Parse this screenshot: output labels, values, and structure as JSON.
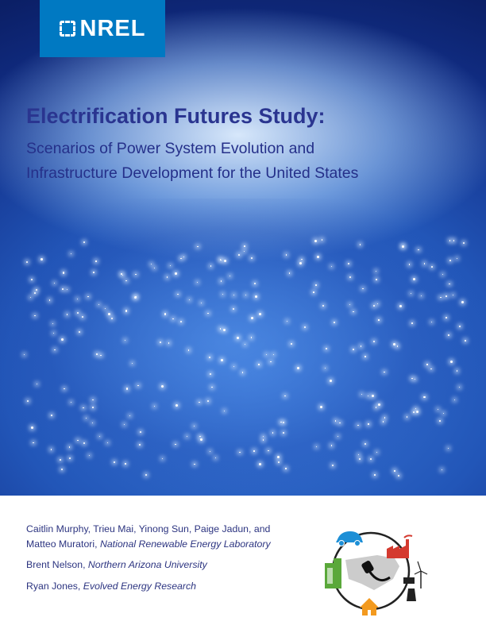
{
  "logo": {
    "text": "NREL",
    "brand_color": "#0079c2"
  },
  "title": "Electrification Futures Study:",
  "subtitle": [
    "Scenarios of Power System Evolution and",
    "Infrastructure Development for the United States"
  ],
  "authors": [
    {
      "names": "Caitlin Murphy, Trieu Mai, Yinong Sun, Paige Jadun, and",
      "names2": "Matteo Muratori, ",
      "affiliation": "National Renewable Energy Laboratory"
    },
    {
      "names": "Brent Nelson, ",
      "affiliation": "Northern Arizona University"
    },
    {
      "names": "Ryan Jones, ",
      "affiliation": "Evolved Energy Research"
    }
  ],
  "graphic_icons": [
    "car-icon",
    "factory-icon",
    "wind-turbine-icon",
    "solar-panel-icon",
    "power-plant-icon",
    "house-icon",
    "building-icon",
    "plug-icon",
    "us-map-icon"
  ]
}
